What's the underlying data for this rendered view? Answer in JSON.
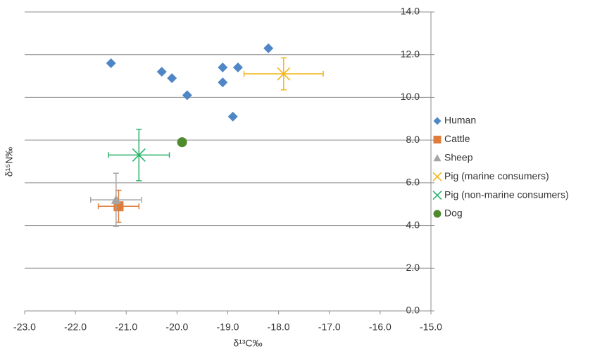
{
  "chart_data": {
    "type": "scatter",
    "x_label": "δ¹³C‰",
    "y_label": "δ¹⁵N‰",
    "xlim": [
      -23,
      -15
    ],
    "xticks": [
      {
        "value": -23,
        "label": "-23.0"
      },
      {
        "value": -22,
        "label": "-22.0"
      },
      {
        "value": -21,
        "label": "-21.0"
      },
      {
        "value": -20,
        "label": "-20.0"
      },
      {
        "value": -19,
        "label": "-19.0"
      },
      {
        "value": -18,
        "label": "-18.0"
      },
      {
        "value": -17,
        "label": "-17.0"
      },
      {
        "value": -16,
        "label": "-16.0"
      },
      {
        "value": -15,
        "label": "-15.0"
      }
    ],
    "ylim": [
      0,
      14
    ],
    "yticks": [
      {
        "value": 0,
        "label": "0.0"
      },
      {
        "value": 2,
        "label": "2.0"
      },
      {
        "value": 4,
        "label": "4.0"
      },
      {
        "value": 6,
        "label": "6.0"
      },
      {
        "value": 8,
        "label": "8.0"
      },
      {
        "value": 10,
        "label": "10.0"
      },
      {
        "value": 12,
        "label": "12.0"
      },
      {
        "value": 14,
        "label": "14.0"
      }
    ],
    "grid": true,
    "legend": "right",
    "series": [
      {
        "name": "Human",
        "color": "#4f86c6",
        "marker": "diamond",
        "x": [
          -21.3,
          -20.3,
          -20.1,
          -19.8,
          -19.1,
          -19.1,
          -18.8,
          -18.2,
          -18.9
        ],
        "values": [
          11.6,
          11.2,
          10.9,
          10.1,
          11.4,
          10.7,
          11.4,
          12.3,
          9.1
        ]
      },
      {
        "name": "Cattle",
        "color": "#e07b39",
        "marker": "square",
        "x": [
          -21.15
        ],
        "values": [
          4.9
        ],
        "x_error": [
          0.4
        ],
        "y_error": [
          0.75
        ]
      },
      {
        "name": "Sheep",
        "color": "#a5a5a5",
        "marker": "triangle",
        "x": [
          -21.2
        ],
        "values": [
          5.2
        ],
        "x_error": [
          0.5
        ],
        "y_error": [
          1.25
        ]
      },
      {
        "name": "Pig (marine consumers)",
        "color": "#f2b51c",
        "marker": "x",
        "x": [
          -17.9
        ],
        "values": [
          11.1
        ],
        "x_error": [
          0.78
        ],
        "y_error": [
          0.75
        ]
      },
      {
        "name": "Pig (non-marine consumers)",
        "color": "#2bb36a",
        "marker": "x",
        "x": [
          -20.75
        ],
        "values": [
          7.3
        ],
        "x_error": [
          0.6
        ],
        "y_error": [
          1.2
        ]
      },
      {
        "name": "Dog",
        "color": "#4f8a2f",
        "marker": "circle",
        "x": [
          -19.9
        ],
        "values": [
          7.9
        ]
      }
    ]
  }
}
